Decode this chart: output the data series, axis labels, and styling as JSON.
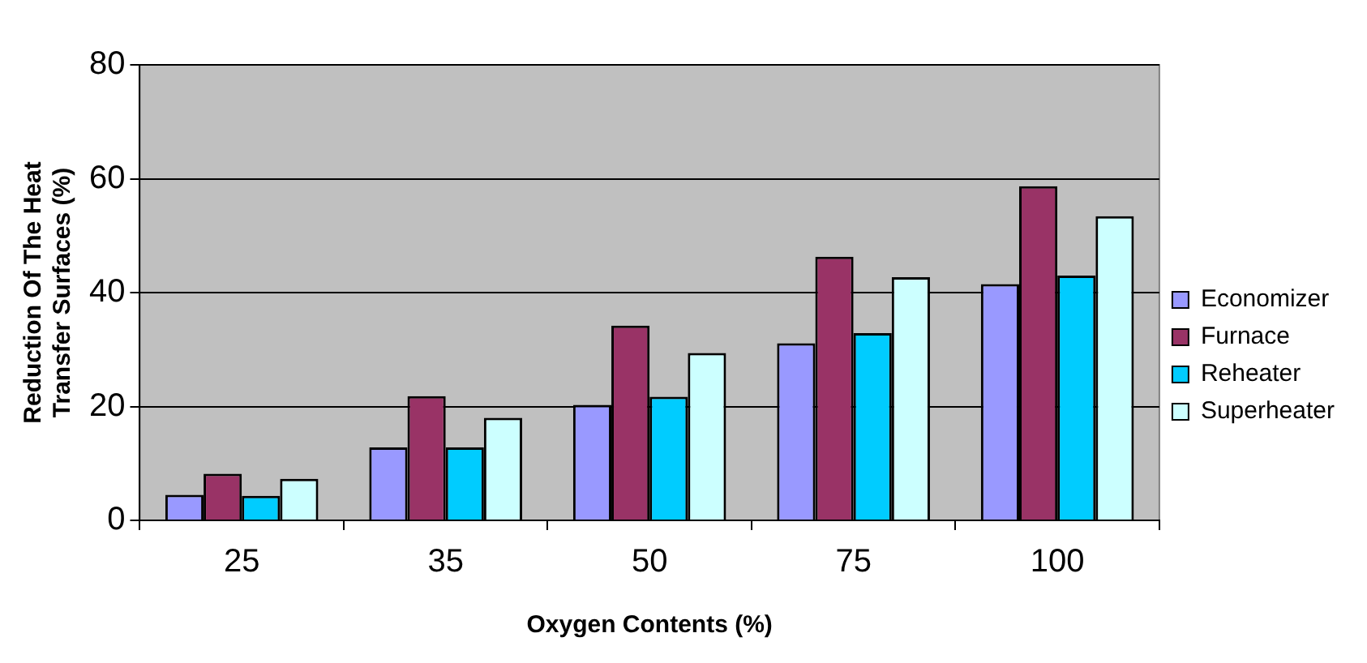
{
  "chart_data": {
    "type": "bar",
    "xlabel": "Oxygen Contents (%)",
    "ylabel": "Reduction Of The Heat Transfer Surfaces (%)",
    "categories": [
      "25",
      "35",
      "50",
      "75",
      "100"
    ],
    "series": [
      {
        "name": "Economizer",
        "color": "#9999ff",
        "values": [
          4.5,
          12.8,
          20.3,
          31.1,
          41.5
        ]
      },
      {
        "name": "Furnace",
        "color": "#993366",
        "values": [
          8.2,
          21.8,
          34.2,
          46.3,
          58.7
        ]
      },
      {
        "name": "Reheater",
        "color": "#00ccff",
        "values": [
          4.3,
          12.8,
          21.7,
          32.9,
          43.0
        ]
      },
      {
        "name": "Superheater",
        "color": "#ccffff",
        "values": [
          7.3,
          18.0,
          29.4,
          42.7,
          53.4
        ]
      }
    ],
    "ylim": [
      0,
      80
    ],
    "yticks": [
      0,
      20,
      40,
      60,
      80
    ],
    "grid": "y",
    "legend": "right"
  }
}
